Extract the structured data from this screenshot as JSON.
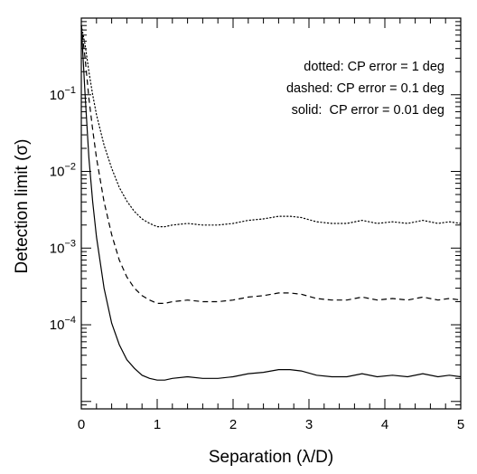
{
  "chart_data": {
    "type": "line",
    "title": "",
    "xlabel": "Separation (λ/D)",
    "ylabel": "Detection limit (σ)",
    "xlim": [
      0,
      5
    ],
    "ylim": [
      8e-06,
      1
    ],
    "yscale": "log",
    "grid": false,
    "legend_position": "top-right",
    "x_ticks": [
      {
        "value": 0,
        "label": "0"
      },
      {
        "value": 1,
        "label": "1"
      },
      {
        "value": 2,
        "label": "2"
      },
      {
        "value": 3,
        "label": "3"
      },
      {
        "value": 4,
        "label": "4"
      },
      {
        "value": 5,
        "label": "5"
      }
    ],
    "y_ticks": [
      {
        "value": 0.1,
        "base": "10",
        "exp": "−1"
      },
      {
        "value": 0.01,
        "base": "10",
        "exp": "−2"
      },
      {
        "value": 0.001,
        "base": "10",
        "exp": "−3"
      },
      {
        "value": 0.0001,
        "base": "10",
        "exp": "−4"
      }
    ],
    "legend": [
      "dotted: CP error = 1 deg",
      "dashed: CP error = 0.1 deg",
      "solid:  CP error = 0.01 deg"
    ],
    "series": [
      {
        "style": "dotted",
        "x": [
          0,
          0.05,
          0.1,
          0.15,
          0.2,
          0.3,
          0.4,
          0.5,
          0.6,
          0.7,
          0.8,
          0.9,
          1.0,
          1.1,
          1.2,
          1.4,
          1.6,
          1.8,
          2.0,
          2.2,
          2.4,
          2.6,
          2.75,
          2.9,
          3.1,
          3.3,
          3.5,
          3.7,
          3.9,
          4.1,
          4.3,
          4.5,
          4.7,
          4.85,
          5.0
        ],
        "y": [
          0.8,
          0.45,
          0.2,
          0.1,
          0.055,
          0.022,
          0.011,
          0.0062,
          0.0041,
          0.003,
          0.0024,
          0.0021,
          0.0019,
          0.0019,
          0.002,
          0.0021,
          0.002,
          0.002,
          0.0021,
          0.0023,
          0.0024,
          0.0026,
          0.0026,
          0.0025,
          0.0022,
          0.0021,
          0.0021,
          0.0023,
          0.0021,
          0.0022,
          0.0021,
          0.0023,
          0.0021,
          0.0022,
          0.0021
        ]
      },
      {
        "style": "dashed",
        "x": [
          0,
          0.05,
          0.1,
          0.15,
          0.2,
          0.3,
          0.4,
          0.5,
          0.6,
          0.7,
          0.8,
          0.9,
          1.0,
          1.1,
          1.2,
          1.4,
          1.6,
          1.8,
          2.0,
          2.2,
          2.4,
          2.6,
          2.75,
          2.9,
          3.1,
          3.3,
          3.5,
          3.7,
          3.9,
          4.1,
          4.3,
          4.5,
          4.7,
          4.85,
          5.0
        ],
        "y": [
          0.8,
          0.3,
          0.09,
          0.035,
          0.015,
          0.004,
          0.0015,
          0.0007,
          0.00042,
          0.0003,
          0.00024,
          0.00021,
          0.00019,
          0.00019,
          0.0002,
          0.00021,
          0.0002,
          0.0002,
          0.00021,
          0.00023,
          0.00024,
          0.00026,
          0.00026,
          0.00025,
          0.00022,
          0.00021,
          0.00021,
          0.00023,
          0.00021,
          0.00022,
          0.00021,
          0.00023,
          0.00021,
          0.00022,
          0.00021
        ]
      },
      {
        "style": "solid",
        "x": [
          0,
          0.05,
          0.1,
          0.15,
          0.2,
          0.3,
          0.4,
          0.5,
          0.6,
          0.7,
          0.8,
          0.9,
          1.0,
          1.1,
          1.2,
          1.4,
          1.6,
          1.8,
          2.0,
          2.2,
          2.4,
          2.6,
          2.75,
          2.9,
          3.1,
          3.3,
          3.5,
          3.7,
          3.9,
          4.1,
          4.3,
          4.5,
          4.7,
          4.85,
          5.0
        ],
        "y": [
          0.8,
          0.1,
          0.015,
          0.004,
          0.0014,
          0.0003,
          0.000105,
          5.5e-05,
          3.5e-05,
          2.7e-05,
          2.2e-05,
          2e-05,
          1.9e-05,
          1.9e-05,
          2e-05,
          2.1e-05,
          2e-05,
          2e-05,
          2.1e-05,
          2.3e-05,
          2.4e-05,
          2.6e-05,
          2.6e-05,
          2.5e-05,
          2.2e-05,
          2.1e-05,
          2.1e-05,
          2.3e-05,
          2.1e-05,
          2.2e-05,
          2.1e-05,
          2.3e-05,
          2.1e-05,
          2.2e-05,
          2.1e-05
        ]
      }
    ]
  }
}
